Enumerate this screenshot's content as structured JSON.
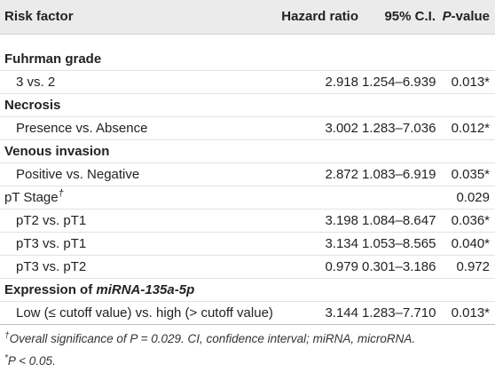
{
  "header": {
    "risk_factor": "Risk factor",
    "hazard_ratio": "Hazard ratio",
    "ci": "95% C.I.",
    "p_letter": "P",
    "p_rest": "-value"
  },
  "rows": [
    {
      "label": "Fuhrman grade"
    },
    {
      "label": "3 vs. 2",
      "hazard_ratio": "2.918",
      "ci": "1.254–6.939",
      "p_value": "0.013*"
    },
    {
      "label": "Necrosis"
    },
    {
      "label": "Presence vs. Absence",
      "hazard_ratio": "3.002",
      "ci": "1.283–7.036",
      "p_value": "0.012*"
    },
    {
      "label": "Venous invasion"
    },
    {
      "label": "Positive vs. Negative",
      "hazard_ratio": "2.872",
      "ci": "1.083–6.919",
      "p_value": "0.035*"
    },
    {
      "label": "pT Stage",
      "marker": "†",
      "p_value": "0.029"
    },
    {
      "label": "pT2 vs. pT1",
      "hazard_ratio": "3.198",
      "ci": "1.084–8.647",
      "p_value": "0.036*"
    },
    {
      "label": "pT3 vs. pT1",
      "hazard_ratio": "3.134",
      "ci": "1.053–8.565",
      "p_value": "0.040*"
    },
    {
      "label": "pT3 vs. pT2",
      "hazard_ratio": "0.979",
      "ci": "0.301–3.186",
      "p_value": "0.972"
    },
    {
      "label": "Expression of ",
      "label_italic": "miRNA-135a-5p"
    },
    {
      "label": "Low (≤ cutoff value) vs. high (> cutoff value)",
      "hazard_ratio": "3.144",
      "ci": "1.283–7.710",
      "p_value": "0.013*"
    }
  ],
  "footnotes": [
    {
      "marker": "†",
      "text": "Overall significance of P = 0.029. CI, confidence interval; miRNA, microRNA."
    },
    {
      "marker": "*",
      "text": "P < 0.05."
    }
  ]
}
